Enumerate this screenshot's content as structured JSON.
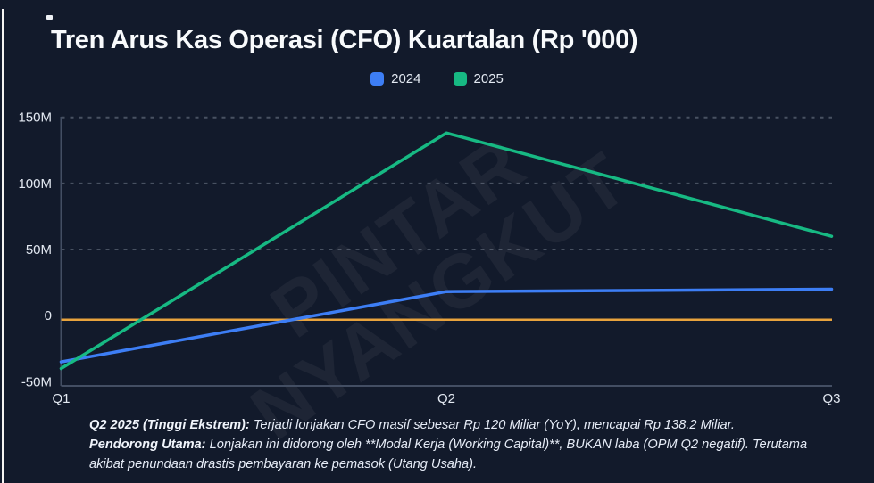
{
  "title": "Tren Arus Kas Operasi (CFO) Kuartalan (Rp '000)",
  "legend": [
    {
      "label": "2024",
      "color": "#3d7ef5"
    },
    {
      "label": "2025",
      "color": "#17b983"
    }
  ],
  "watermark": {
    "line1": "PINTAR",
    "line2": "NYANGKUT"
  },
  "chart_data": {
    "type": "line",
    "title": "Tren Arus Kas Operasi (CFO) Kuartalan (Rp '000)",
    "x": [
      "Q1",
      "Q2",
      "Q3"
    ],
    "series": [
      {
        "name": "2024",
        "color": "#3d7ef5",
        "values_millions": [
          -35,
          18.2,
          20
        ]
      },
      {
        "name": "2025",
        "color": "#17b983",
        "values_millions": [
          -40,
          138.2,
          60
        ]
      }
    ],
    "ylim_millions": [
      -55,
      150
    ],
    "yticks": [
      {
        "label": "150M",
        "value": 150,
        "grid": true,
        "highlight": false
      },
      {
        "label": "100M",
        "value": 100,
        "grid": true,
        "highlight": false
      },
      {
        "label": "50M",
        "value": 50,
        "grid": true,
        "highlight": false
      },
      {
        "label": "0",
        "value": 0,
        "grid": false,
        "highlight": true
      },
      {
        "label": "-50M",
        "value": -50,
        "grid": false,
        "highlight": false
      }
    ],
    "zero_line": {
      "value": 0,
      "color": "#e8a33d"
    },
    "grid_style": "dashed horizontal",
    "legend_position": "top-center",
    "watermark": "PINTAR NYANGKUT"
  },
  "annotation": {
    "items": [
      {
        "label": "Q2 2025 (Tinggi Ekstrem):",
        "text": " Terjadi lonjakan CFO masif sebesar Rp 120 Miliar (YoY), mencapai Rp 138.2 Miliar."
      },
      {
        "label": "Pendorong Utama:",
        "text": " Lonjakan ini didorong oleh **Modal Kerja (Working Capital)**, BUKAN laba (OPM Q2 negatif). Terutama akibat penundaan drastis pembayaran ke pemasok (Utang Usaha)."
      }
    ]
  },
  "colors": {
    "background": "#121a2b",
    "title_text": "#f8fafc",
    "tick_text": "#e3e9f2",
    "axis_line": "#434e63",
    "zero_line": "#e8a33d",
    "series_2024": "#3d7ef5",
    "series_2025": "#17b983"
  }
}
